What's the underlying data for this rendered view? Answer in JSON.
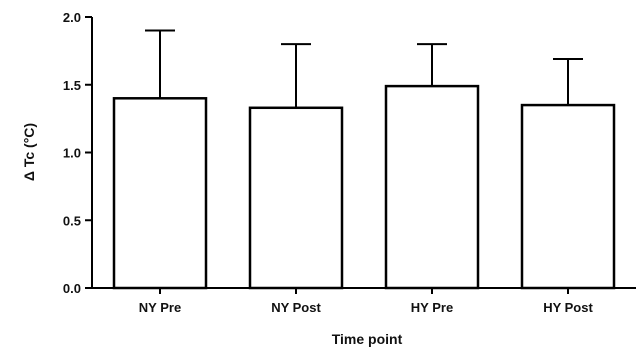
{
  "chart_data": {
    "type": "bar",
    "title": "",
    "xlabel": "Time point",
    "ylabel": "Δ Tc (°C)",
    "categories": [
      "NY Pre",
      "NY Post",
      "HY Pre",
      "HY Post"
    ],
    "values": [
      1.4,
      1.33,
      1.49,
      1.35
    ],
    "error_upper": [
      1.9,
      1.8,
      1.8,
      1.69
    ],
    "ylim": [
      0,
      2.0
    ],
    "yticks": [
      "0.0",
      "0.5",
      "1.0",
      "1.5",
      "2.0"
    ],
    "grid": false,
    "legend": "none",
    "bar_fill": "#ffffff",
    "bar_stroke": "#000000"
  }
}
